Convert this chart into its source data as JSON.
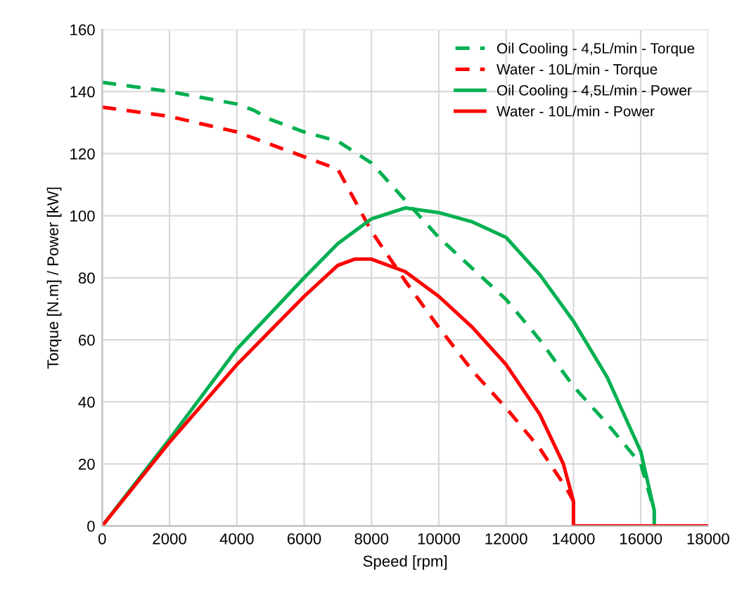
{
  "chart_data": {
    "type": "line",
    "xlabel": "Speed [rpm]",
    "ylabel": "Torque [N.m] / Power [kW]",
    "xlim": [
      0,
      18000
    ],
    "xticks": [
      0,
      2000,
      4000,
      6000,
      8000,
      10000,
      12000,
      14000,
      16000,
      18000
    ],
    "ylim": [
      0,
      160
    ],
    "yticks": [
      0,
      20,
      40,
      60,
      80,
      100,
      120,
      140,
      160
    ],
    "grid": true,
    "legend": "top right",
    "series": [
      {
        "name": "Oil Cooling - 4,5L/min - Torque",
        "color": "#00b050",
        "line_style": "dashed",
        "x": [
          0,
          2000,
          4000,
          4500,
          5000,
          6000,
          7000,
          8000,
          9000,
          10000,
          11000,
          12000,
          13000,
          14000,
          15000,
          16000,
          16400
        ],
        "values": [
          143,
          140,
          136,
          134,
          131,
          127,
          124,
          117,
          105,
          93,
          83,
          73,
          60,
          45,
          33,
          20,
          5
        ]
      },
      {
        "name": "Water - 10L/min - Torque",
        "color": "#ff0000",
        "line_style": "dashed",
        "x": [
          0,
          2000,
          4000,
          5000,
          6000,
          7000,
          8000,
          9000,
          10000,
          11000,
          12000,
          13000,
          13800,
          14000
        ],
        "values": [
          135,
          132,
          127,
          123,
          119,
          115,
          95,
          79,
          64,
          50,
          38,
          25,
          12,
          8
        ]
      },
      {
        "name": "Oil Cooling - 4,5L/min - Power",
        "color": "#00b050",
        "line_style": "solid",
        "x": [
          0,
          2000,
          4000,
          6000,
          7000,
          8000,
          9000,
          10000,
          11000,
          12000,
          13000,
          14000,
          15000,
          16000,
          16400,
          16400
        ],
        "values": [
          0,
          28,
          57,
          80,
          91,
          99,
          102.5,
          101,
          98,
          93,
          81,
          66,
          48,
          24,
          5,
          0
        ]
      },
      {
        "name": "Water - 10L/min - Power",
        "color": "#ff0000",
        "line_style": "solid",
        "x": [
          0,
          2000,
          4000,
          6000,
          7000,
          7500,
          8000,
          9000,
          10000,
          11000,
          12000,
          13000,
          13700,
          14000,
          14000,
          18000
        ],
        "values": [
          0,
          27,
          52,
          74,
          84,
          86,
          86,
          82,
          74,
          64,
          52,
          36,
          20,
          8,
          0,
          0
        ]
      }
    ]
  }
}
